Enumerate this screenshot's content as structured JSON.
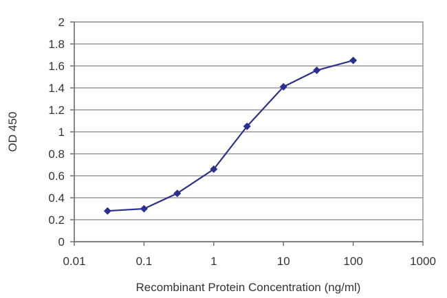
{
  "chart_data": {
    "type": "line",
    "title": "",
    "xlabel": "Recombinant Protein Concentration (ng/ml)",
    "ylabel": "OD 450",
    "x_scale": "log",
    "xlim": [
      0.01,
      1000
    ],
    "ylim": [
      0,
      2
    ],
    "x_ticks": [
      "0.01",
      "0.1",
      "1",
      "10",
      "100",
      "1000"
    ],
    "y_ticks": [
      "0",
      "0.2",
      "0.4",
      "0.6",
      "0.8",
      "1",
      "1.2",
      "1.4",
      "1.6",
      "1.8",
      "2"
    ],
    "grid": "horizontal",
    "legend": "none",
    "series": [
      {
        "color": "#2b2f8f",
        "x": [
          0.03,
          0.1,
          0.3,
          1,
          3,
          10,
          30,
          100
        ],
        "y": [
          0.28,
          0.3,
          0.44,
          0.66,
          1.05,
          1.41,
          1.56,
          1.65
        ]
      }
    ]
  }
}
